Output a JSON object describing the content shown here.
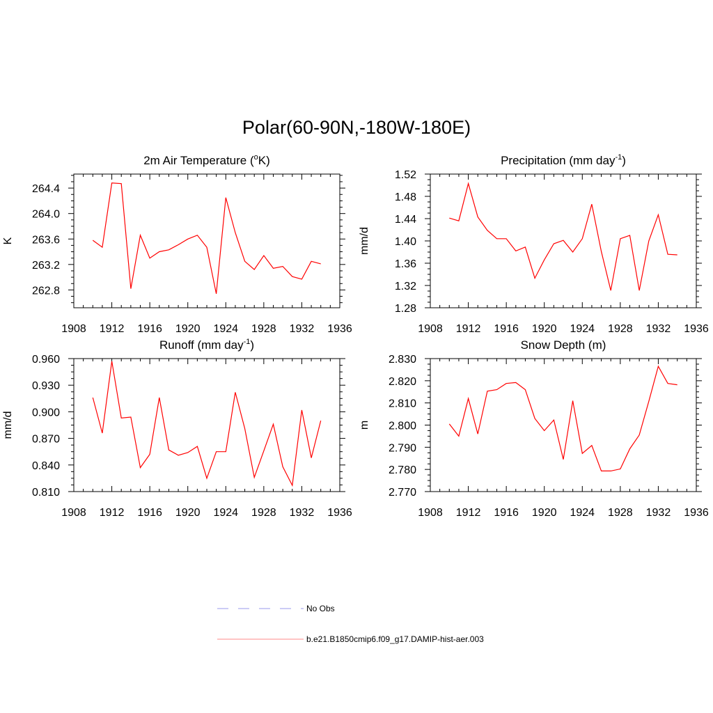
{
  "page": {
    "title": "Polar(60-90N,-180W-180E)"
  },
  "legend": {
    "items": [
      {
        "label": "No Obs",
        "color": "#9999ee",
        "style": "dashed"
      },
      {
        "label": "b.e21.B1850cmip6.f09_g17.DAMIP-hist-aer.003",
        "color": "#ff8888",
        "style": "solid"
      }
    ]
  },
  "colors": {
    "series": "#ff0000"
  },
  "chart_data": [
    {
      "type": "line",
      "title": "2m Air Temperature (",
      "title_sup": "o",
      "title_after": "K)",
      "ylabel": "K",
      "xlim": [
        1908,
        1936
      ],
      "ylim": [
        262.52,
        264.62
      ],
      "xticks": [
        1908,
        1912,
        1916,
        1920,
        1924,
        1928,
        1932,
        1936
      ],
      "xtick_labels": [
        "1908",
        "1912",
        "1916",
        "1920",
        "1924",
        "1928",
        "1932",
        "1936"
      ],
      "yticks": [
        262.8,
        263.2,
        263.6,
        264.0,
        264.4
      ],
      "ytick_labels": [
        "262.8",
        "263.2",
        "263.6",
        "264.0",
        "264.4"
      ],
      "series": [
        {
          "x": [
            1910,
            1911,
            1912,
            1913,
            1914,
            1915,
            1916,
            1917,
            1918,
            1919,
            1920,
            1921,
            1922,
            1923,
            1924,
            1925,
            1926,
            1927,
            1928,
            1929,
            1930,
            1931,
            1932,
            1933,
            1934
          ],
          "values": [
            263.58,
            263.47,
            264.48,
            264.47,
            262.82,
            263.66,
            263.3,
            263.4,
            263.43,
            263.51,
            263.6,
            263.66,
            263.47,
            262.74,
            264.25,
            263.7,
            263.25,
            263.12,
            263.34,
            263.14,
            263.17,
            263.01,
            262.97,
            263.25,
            263.21
          ]
        }
      ]
    },
    {
      "type": "line",
      "title": "Precipitation (mm day",
      "title_sup": "-1",
      "title_after": ")",
      "ylabel": "mm/d",
      "xlim": [
        1908,
        1936
      ],
      "ylim": [
        1.28,
        1.52
      ],
      "xticks": [
        1908,
        1912,
        1916,
        1920,
        1924,
        1928,
        1932,
        1936
      ],
      "xtick_labels": [
        "1908",
        "1912",
        "1916",
        "1920",
        "1924",
        "1928",
        "1932",
        "1936"
      ],
      "yticks": [
        1.28,
        1.32,
        1.36,
        1.4,
        1.44,
        1.48,
        1.52
      ],
      "ytick_labels": [
        "1.28",
        "1.32",
        "1.36",
        "1.40",
        "1.44",
        "1.48",
        "1.52"
      ],
      "series": [
        {
          "x": [
            1910,
            1911,
            1912,
            1913,
            1914,
            1915,
            1916,
            1917,
            1918,
            1919,
            1920,
            1921,
            1922,
            1923,
            1924,
            1925,
            1926,
            1927,
            1928,
            1929,
            1930,
            1931,
            1932,
            1933,
            1934
          ],
          "values": [
            1.441,
            1.436,
            1.503,
            1.443,
            1.419,
            1.404,
            1.404,
            1.382,
            1.389,
            1.333,
            1.366,
            1.395,
            1.401,
            1.38,
            1.404,
            1.466,
            1.381,
            1.311,
            1.404,
            1.41,
            1.311,
            1.4,
            1.447,
            1.376,
            1.375
          ]
        }
      ]
    },
    {
      "type": "line",
      "title": "Runoff (mm day",
      "title_sup": "-1",
      "title_after": ")",
      "ylabel": "mm/d",
      "xlim": [
        1908,
        1936
      ],
      "ylim": [
        0.81,
        0.96
      ],
      "xticks": [
        1908,
        1912,
        1916,
        1920,
        1924,
        1928,
        1932,
        1936
      ],
      "xtick_labels": [
        "1908",
        "1912",
        "1916",
        "1920",
        "1924",
        "1928",
        "1932",
        "1936"
      ],
      "yticks": [
        0.81,
        0.84,
        0.87,
        0.9,
        0.93,
        0.96
      ],
      "ytick_labels": [
        "0.810",
        "0.840",
        "0.870",
        "0.900",
        "0.930",
        "0.960"
      ],
      "series": [
        {
          "x": [
            1910,
            1911,
            1912,
            1913,
            1914,
            1915,
            1916,
            1917,
            1918,
            1919,
            1920,
            1921,
            1922,
            1923,
            1924,
            1925,
            1926,
            1927,
            1928,
            1929,
            1930,
            1931,
            1932,
            1933,
            1934
          ],
          "values": [
            0.916,
            0.876,
            0.957,
            0.893,
            0.894,
            0.837,
            0.852,
            0.916,
            0.857,
            0.851,
            0.854,
            0.861,
            0.825,
            0.855,
            0.855,
            0.922,
            0.881,
            0.826,
            0.856,
            0.886,
            0.838,
            0.817,
            0.902,
            0.848,
            0.89
          ]
        }
      ]
    },
    {
      "type": "line",
      "title": "Snow Depth (m)",
      "title_sup": "",
      "title_after": "",
      "ylabel": "m",
      "xlim": [
        1908,
        1936
      ],
      "ylim": [
        2.77,
        2.83
      ],
      "xticks": [
        1908,
        1912,
        1916,
        1920,
        1924,
        1928,
        1932,
        1936
      ],
      "xtick_labels": [
        "1908",
        "1912",
        "1916",
        "1920",
        "1924",
        "1928",
        "1932",
        "1936"
      ],
      "yticks": [
        2.77,
        2.78,
        2.79,
        2.8,
        2.81,
        2.82,
        2.83
      ],
      "ytick_labels": [
        "2.770",
        "2.780",
        "2.790",
        "2.800",
        "2.810",
        "2.820",
        "2.830"
      ],
      "series": [
        {
          "x": [
            1910,
            1911,
            1912,
            1913,
            1914,
            1915,
            1916,
            1917,
            1918,
            1919,
            1920,
            1921,
            1922,
            1923,
            1924,
            1925,
            1926,
            1927,
            1928,
            1929,
            1930,
            1931,
            1932,
            1933,
            1934
          ],
          "values": [
            2.8005,
            2.795,
            2.812,
            2.796,
            2.8153,
            2.816,
            2.8188,
            2.8192,
            2.816,
            2.803,
            2.7975,
            2.8023,
            2.7845,
            2.811,
            2.7872,
            2.7908,
            2.7793,
            2.7793,
            2.7802,
            2.7893,
            2.7955,
            2.8107,
            2.8265,
            2.8188,
            2.8182
          ]
        }
      ]
    }
  ]
}
